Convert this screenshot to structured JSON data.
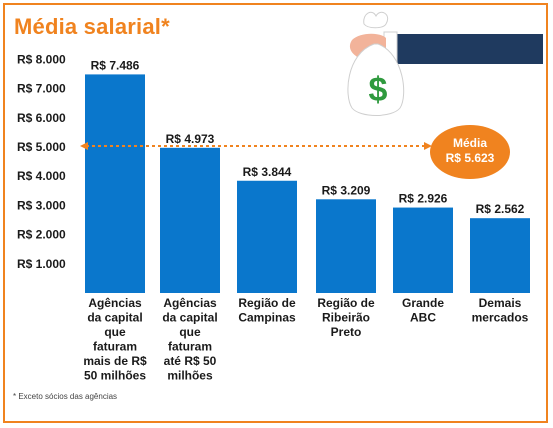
{
  "title": "Média salarial*",
  "footnote": "* Exceto sócios das agências",
  "colors": {
    "bar": "#0a77cc",
    "accent": "#f0831f",
    "sleeve": "#1f3a5f",
    "money_sign": "#2f9a3e"
  },
  "illustration": {
    "icon": "money-bag-in-hand-icon",
    "symbol": "$"
  },
  "chart_data": {
    "type": "bar",
    "title": "Média salarial*",
    "categories": [
      "Agências da capital que faturam mais de R$ 50 milhões",
      "Agências da capital que faturam até R$ 50 milhões",
      "Região de Campinas",
      "Região de Ribeirão Preto",
      "Grande ABC",
      "Demais mercados"
    ],
    "category_lines": [
      [
        "Agências",
        "da capital",
        "que",
        "faturam",
        "mais de R$",
        "50 milhões"
      ],
      [
        "Agências",
        "da capital",
        "que",
        "faturam",
        "até R$ 50",
        "milhões"
      ],
      [
        "Região de",
        "Campinas"
      ],
      [
        "Região de",
        "Ribeirão",
        "Preto"
      ],
      [
        "Grande",
        "ABC"
      ],
      [
        "Demais",
        "mercados"
      ]
    ],
    "values": [
      7486,
      4973,
      3844,
      3209,
      2926,
      2562
    ],
    "value_labels": [
      "R$ 7.486",
      "R$ 4.973",
      "R$ 3.844",
      "R$ 3.209",
      "R$ 2.926",
      "R$ 2.562"
    ],
    "y_ticks": [
      1000,
      2000,
      3000,
      4000,
      5000,
      6000,
      7000,
      8000
    ],
    "y_tick_labels": [
      "R$ 1.000",
      "R$ 2.000",
      "R$ 3.000",
      "R$ 4.000",
      "R$ 5.000",
      "R$ 6.000",
      "R$ 7.000",
      "R$ 8.000"
    ],
    "ylim": [
      0,
      8000
    ],
    "grid": false,
    "legend": "none",
    "reference_line": {
      "value": 5623,
      "label_lines": [
        "Média",
        "R$ 5.623"
      ],
      "style": "dashed-double-arrow"
    }
  }
}
